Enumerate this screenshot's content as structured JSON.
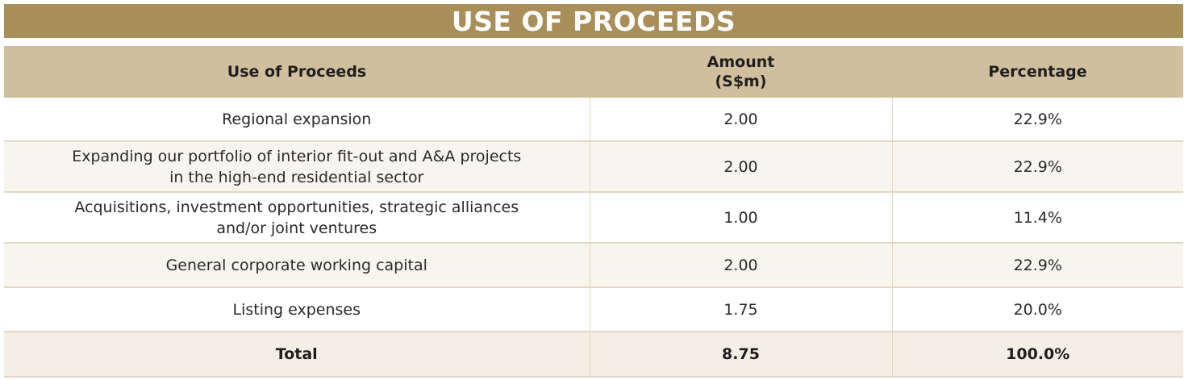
{
  "title": "USE OF PROCEEDS",
  "table": {
    "headers": {
      "use": "Use of Proceeds",
      "amount_line1": "Amount",
      "amount_line2": "(S$m)",
      "percentage": "Percentage"
    },
    "rows": [
      {
        "use_line1": "Regional expansion",
        "use_line2": "",
        "amount": "2.00",
        "percentage": "22.9%"
      },
      {
        "use_line1": "Expanding our portfolio of interior fit-out and A&A projects",
        "use_line2": "in the high-end residential sector",
        "amount": "2.00",
        "percentage": "22.9%"
      },
      {
        "use_line1": "Acquisitions, investment opportunities, strategic alliances",
        "use_line2": "and/or joint ventures",
        "amount": "1.00",
        "percentage": "11.4%"
      },
      {
        "use_line1": "General corporate working capital",
        "use_line2": "",
        "amount": "2.00",
        "percentage": "22.9%"
      },
      {
        "use_line1": "Listing expenses",
        "use_line2": "",
        "amount": "1.75",
        "percentage": "20.0%"
      }
    ],
    "total": {
      "label": "Total",
      "amount": "8.75",
      "percentage": "100.0%"
    }
  },
  "colors": {
    "title_bar": "#a88f5a",
    "header_bg": "#cfbf9d",
    "row_alt": "#f8f5ef"
  }
}
